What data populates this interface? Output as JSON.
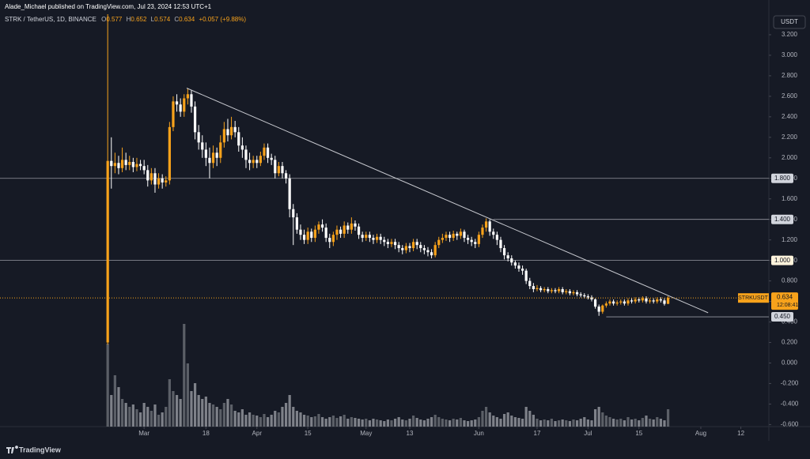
{
  "header": {
    "publisher": "Alade_Michael published on TradingView.com, Jul 23, 2024 12:53 UTC+1",
    "symbol": "STRK / TetherUS, 1D, BINANCE",
    "ohlc_labels": [
      "O",
      "H",
      "L",
      "C"
    ],
    "change": "+0.057 (+9.88%)",
    "currency": "USDT"
  },
  "footer": {
    "brand": "TradingView"
  },
  "chart_data": {
    "type": "candlestick",
    "open": [
      0.2,
      1.97,
      1.92,
      1.95,
      1.9,
      1.98,
      1.93,
      1.96,
      1.91,
      1.94,
      1.92,
      1.88,
      1.78,
      1.85,
      1.74,
      1.8,
      1.76,
      1.78,
      2.3,
      2.55,
      2.52,
      2.45,
      2.58,
      2.62,
      2.5,
      2.25,
      2.15,
      2.08,
      2.0,
      1.95,
      2.05,
      2.0,
      2.15,
      2.28,
      2.22,
      2.3,
      2.25,
      2.12,
      2.08,
      1.98,
      1.95,
      1.98,
      1.95,
      2.02,
      2.1,
      2.0,
      1.98,
      1.85,
      1.92,
      1.85,
      1.8,
      1.5,
      1.42,
      1.3,
      1.25,
      1.2,
      1.28,
      1.22,
      1.3,
      1.35,
      1.32,
      1.22,
      1.18,
      1.25,
      1.3,
      1.26,
      1.34,
      1.3,
      1.36,
      1.33,
      1.25,
      1.22,
      1.25,
      1.22,
      1.2,
      1.23,
      1.2,
      1.18,
      1.16,
      1.18,
      1.15,
      1.12,
      1.1,
      1.14,
      1.12,
      1.18,
      1.15,
      1.12,
      1.1,
      1.08,
      1.05,
      1.15,
      1.2,
      1.22,
      1.25,
      1.22,
      1.26,
      1.24,
      1.28,
      1.22,
      1.2,
      1.18,
      1.16,
      1.25,
      1.32,
      1.38,
      1.28,
      1.25,
      1.2,
      1.12,
      1.05,
      1.02,
      0.98,
      0.95,
      0.92,
      0.9,
      0.8,
      0.75,
      0.72,
      0.73,
      0.71,
      0.72,
      0.7,
      0.71,
      0.7,
      0.72,
      0.69,
      0.7,
      0.68,
      0.69,
      0.67,
      0.66,
      0.65,
      0.64,
      0.62,
      0.55,
      0.5,
      0.56,
      0.58,
      0.6,
      0.58,
      0.59,
      0.6,
      0.58,
      0.61,
      0.6,
      0.62,
      0.61,
      0.63,
      0.6,
      0.61,
      0.6,
      0.62,
      0.61,
      0.577
    ],
    "high": [
      3.4,
      2.2,
      2.05,
      2.02,
      2.1,
      2.05,
      2.02,
      2.0,
      2.0,
      1.98,
      1.98,
      1.93,
      1.9,
      1.9,
      1.85,
      1.84,
      1.82,
      2.35,
      2.6,
      2.62,
      2.58,
      2.62,
      2.68,
      2.66,
      2.55,
      2.32,
      2.22,
      2.15,
      2.1,
      2.12,
      2.1,
      2.22,
      2.35,
      2.38,
      2.4,
      2.36,
      2.3,
      2.2,
      2.12,
      2.05,
      2.02,
      2.02,
      2.06,
      2.14,
      2.14,
      2.04,
      2.02,
      1.96,
      1.96,
      1.88,
      1.84,
      1.55,
      1.46,
      1.35,
      1.3,
      1.32,
      1.31,
      1.34,
      1.38,
      1.4,
      1.36,
      1.26,
      1.28,
      1.34,
      1.33,
      1.38,
      1.37,
      1.42,
      1.39,
      1.36,
      1.28,
      1.28,
      1.28,
      1.25,
      1.26,
      1.26,
      1.23,
      1.21,
      1.21,
      1.21,
      1.18,
      1.15,
      1.17,
      1.17,
      1.21,
      1.21,
      1.18,
      1.15,
      1.13,
      1.11,
      1.18,
      1.23,
      1.26,
      1.28,
      1.28,
      1.29,
      1.28,
      1.31,
      1.3,
      1.25,
      1.23,
      1.21,
      1.28,
      1.35,
      1.41,
      1.4,
      1.31,
      1.28,
      1.23,
      1.15,
      1.08,
      1.05,
      1.0,
      0.98,
      0.95,
      0.92,
      0.83,
      0.78,
      0.76,
      0.75,
      0.74,
      0.74,
      0.73,
      0.73,
      0.74,
      0.74,
      0.72,
      0.72,
      0.71,
      0.71,
      0.69,
      0.68,
      0.67,
      0.66,
      0.63,
      0.57,
      0.57,
      0.6,
      0.62,
      0.62,
      0.61,
      0.62,
      0.62,
      0.63,
      0.63,
      0.64,
      0.64,
      0.65,
      0.65,
      0.63,
      0.63,
      0.64,
      0.64,
      0.63,
      0.652
    ],
    "low": [
      0.18,
      1.7,
      1.85,
      1.84,
      1.86,
      1.88,
      1.88,
      1.86,
      1.87,
      1.88,
      1.84,
      1.72,
      1.74,
      1.66,
      1.7,
      1.7,
      1.72,
      1.74,
      2.26,
      2.45,
      2.4,
      2.4,
      2.52,
      2.44,
      2.18,
      2.08,
      2.0,
      1.92,
      1.8,
      1.9,
      1.92,
      1.95,
      2.1,
      2.16,
      2.18,
      2.2,
      2.06,
      2.0,
      1.9,
      1.88,
      1.9,
      1.9,
      1.92,
      1.98,
      1.95,
      1.93,
      1.8,
      1.82,
      1.8,
      1.75,
      1.42,
      1.15,
      1.26,
      1.2,
      1.16,
      1.16,
      1.18,
      1.18,
      1.26,
      1.28,
      1.18,
      1.12,
      1.14,
      1.2,
      1.22,
      1.22,
      1.26,
      1.26,
      1.29,
      1.21,
      1.18,
      1.19,
      1.18,
      1.16,
      1.17,
      1.16,
      1.14,
      1.12,
      1.13,
      1.11,
      1.08,
      1.06,
      1.07,
      1.08,
      1.09,
      1.11,
      1.08,
      1.06,
      1.04,
      1.02,
      1.03,
      1.12,
      1.17,
      1.19,
      1.18,
      1.19,
      1.2,
      1.21,
      1.18,
      1.16,
      1.14,
      1.12,
      1.13,
      1.22,
      1.28,
      1.24,
      1.21,
      1.15,
      1.08,
      1.01,
      0.99,
      0.95,
      0.92,
      0.89,
      0.86,
      0.77,
      0.72,
      0.69,
      0.7,
      0.69,
      0.69,
      0.68,
      0.68,
      0.68,
      0.68,
      0.67,
      0.67,
      0.66,
      0.66,
      0.65,
      0.64,
      0.63,
      0.62,
      0.6,
      0.53,
      0.46,
      0.48,
      0.54,
      0.56,
      0.56,
      0.56,
      0.57,
      0.56,
      0.56,
      0.58,
      0.58,
      0.59,
      0.59,
      0.58,
      0.58,
      0.58,
      0.58,
      0.59,
      0.56,
      0.574
    ],
    "close": [
      1.97,
      1.92,
      1.95,
      1.9,
      1.98,
      1.93,
      1.96,
      1.91,
      1.94,
      1.92,
      1.88,
      1.78,
      1.85,
      1.74,
      1.8,
      1.76,
      1.78,
      2.3,
      2.55,
      2.52,
      2.45,
      2.58,
      2.62,
      2.5,
      2.25,
      2.15,
      2.08,
      2.0,
      1.95,
      2.05,
      2.0,
      2.15,
      2.28,
      2.22,
      2.3,
      2.25,
      2.12,
      2.08,
      1.98,
      1.95,
      1.98,
      1.95,
      2.02,
      2.1,
      2.0,
      1.98,
      1.85,
      1.92,
      1.85,
      1.8,
      1.5,
      1.42,
      1.3,
      1.25,
      1.2,
      1.28,
      1.22,
      1.3,
      1.35,
      1.32,
      1.22,
      1.18,
      1.25,
      1.3,
      1.26,
      1.34,
      1.3,
      1.36,
      1.33,
      1.25,
      1.22,
      1.25,
      1.22,
      1.2,
      1.23,
      1.2,
      1.18,
      1.16,
      1.18,
      1.15,
      1.12,
      1.1,
      1.14,
      1.12,
      1.18,
      1.15,
      1.12,
      1.1,
      1.08,
      1.05,
      1.15,
      1.2,
      1.22,
      1.25,
      1.22,
      1.26,
      1.24,
      1.28,
      1.22,
      1.2,
      1.18,
      1.16,
      1.25,
      1.32,
      1.38,
      1.28,
      1.25,
      1.2,
      1.12,
      1.05,
      1.02,
      0.98,
      0.95,
      0.92,
      0.9,
      0.8,
      0.75,
      0.72,
      0.73,
      0.71,
      0.72,
      0.7,
      0.71,
      0.7,
      0.72,
      0.69,
      0.7,
      0.68,
      0.69,
      0.67,
      0.66,
      0.65,
      0.64,
      0.62,
      0.55,
      0.5,
      0.56,
      0.58,
      0.6,
      0.58,
      0.59,
      0.6,
      0.58,
      0.61,
      0.6,
      0.62,
      0.61,
      0.63,
      0.6,
      0.61,
      0.6,
      0.62,
      0.61,
      0.577,
      0.634
    ],
    "volume": [
      105,
      40,
      65,
      50,
      35,
      30,
      25,
      28,
      22,
      18,
      30,
      25,
      20,
      28,
      15,
      18,
      25,
      60,
      45,
      40,
      35,
      130,
      80,
      45,
      55,
      40,
      35,
      38,
      30,
      28,
      25,
      22,
      30,
      35,
      28,
      20,
      18,
      22,
      15,
      18,
      15,
      14,
      12,
      16,
      12,
      15,
      20,
      18,
      25,
      30,
      40,
      25,
      20,
      18,
      15,
      14,
      12,
      13,
      16,
      12,
      10,
      12,
      14,
      11,
      13,
      15,
      10,
      12,
      11,
      10,
      9,
      10,
      8,
      10,
      9,
      8,
      7,
      9,
      8,
      10,
      12,
      9,
      8,
      10,
      14,
      11,
      9,
      8,
      10,
      12,
      15,
      12,
      10,
      9,
      8,
      10,
      9,
      11,
      8,
      7,
      8,
      9,
      12,
      20,
      25,
      18,
      14,
      12,
      10,
      16,
      18,
      14,
      12,
      11,
      10,
      25,
      20,
      15,
      10,
      8,
      9,
      8,
      10,
      7,
      8,
      9,
      8,
      7,
      9,
      8,
      10,
      12,
      9,
      8,
      22,
      25,
      18,
      14,
      12,
      10,
      9,
      10,
      8,
      12,
      9,
      10,
      8,
      11,
      14,
      10,
      9,
      12,
      10,
      8,
      22
    ],
    "up_color": "#f7a21b",
    "down_color": "#ffffff",
    "volume_color": "#8a8d95",
    "xlim": [
      -29.6,
      181.7
    ],
    "xticks": [
      {
        "value": 10,
        "label": "Mar"
      },
      {
        "value": 27,
        "label": "18"
      },
      {
        "value": 41,
        "label": "Apr"
      },
      {
        "value": 55,
        "label": "15"
      },
      {
        "value": 71,
        "label": "May"
      },
      {
        "value": 83,
        "label": "13"
      },
      {
        "value": 102,
        "label": "Jun"
      },
      {
        "value": 118,
        "label": "17"
      },
      {
        "value": 132,
        "label": "Jul"
      },
      {
        "value": 146,
        "label": "15"
      },
      {
        "value": 163,
        "label": "Aug"
      },
      {
        "value": 174,
        "label": "12"
      }
    ],
    "ylim": [
      -0.62,
      3.4
    ],
    "yticks": [
      {
        "value": 3.2,
        "label": "3.200"
      },
      {
        "value": 3.0,
        "label": "3.000"
      },
      {
        "value": 2.8,
        "label": "2.800"
      },
      {
        "value": 2.6,
        "label": "2.600"
      },
      {
        "value": 2.4,
        "label": "2.400"
      },
      {
        "value": 2.2,
        "label": "2.200"
      },
      {
        "value": 2.0,
        "label": "2.000"
      },
      {
        "value": 1.8,
        "label": "1.800"
      },
      {
        "value": 1.6,
        "label": "1.600"
      },
      {
        "value": 1.4,
        "label": "1.400"
      },
      {
        "value": 1.2,
        "label": "1.200"
      },
      {
        "value": 1.0,
        "label": "1.000"
      },
      {
        "value": 0.8,
        "label": "0.800"
      },
      {
        "value": 0.6,
        "label": "0.600"
      },
      {
        "value": 0.4,
        "label": "0.400"
      },
      {
        "value": 0.2,
        "label": "0.200"
      },
      {
        "value": 0,
        "label": "0.000"
      },
      {
        "value": -0.2,
        "label": "-0.200"
      },
      {
        "value": -0.4,
        "label": "-0.400"
      },
      {
        "value": -0.6,
        "label": "-0.600"
      }
    ],
    "levels": [
      {
        "value": 1.8,
        "label": "1.800"
      },
      {
        "value": 1.4,
        "label": "1.400",
        "start": 106
      },
      {
        "value": 1.0,
        "label": "1.000"
      },
      {
        "value": 0.45,
        "label": "0.450",
        "start": 137
      }
    ],
    "trendline": {
      "x": [
        21.7,
        165
      ],
      "y": [
        2.68,
        0.49
      ]
    },
    "last_price": {
      "symbol": "STRKUSDT",
      "countdown": "12:08:41"
    }
  }
}
